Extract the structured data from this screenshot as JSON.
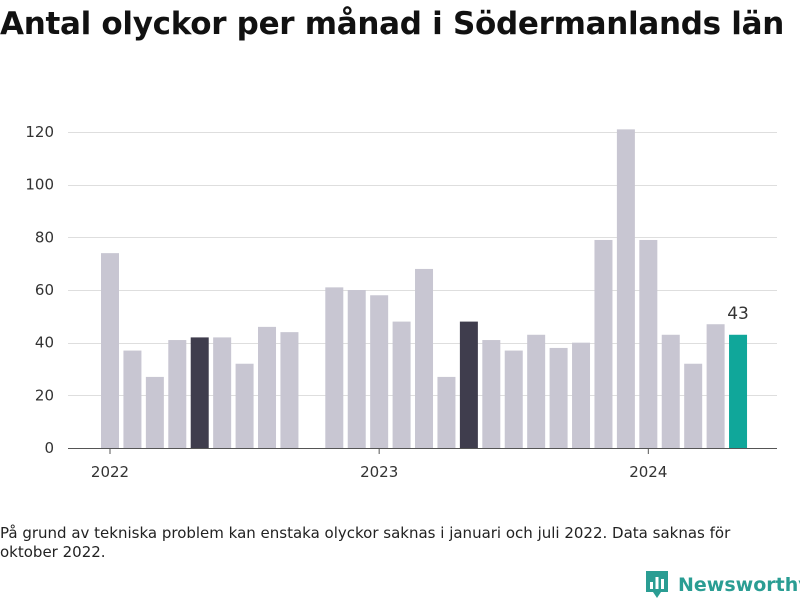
{
  "title": "Antal olyckor per månad i Södermanlands län",
  "footnote": "På grund av tekniska problem kan enstaka olyckor saknas i januari och juli 2022. Data saknas för oktober 2022.",
  "brand": {
    "name": "Newsworthy",
    "logo_icon": "bar-chart-logo-icon"
  },
  "colors": {
    "default": "#c8c6d2",
    "highlight": "#3f3d4d",
    "latest": "#10a79a"
  },
  "chart_data": {
    "type": "bar",
    "title": "Antal olyckor per månad i Södermanlands län",
    "xlabel": "",
    "ylabel": "",
    "ylim": [
      0,
      120
    ],
    "yticks": [
      0,
      20,
      40,
      60,
      80,
      100,
      120
    ],
    "grid": true,
    "legend": "none",
    "x_tick_labels": [
      {
        "label": "2022",
        "month": "2022-01"
      },
      {
        "label": "2023",
        "month": "2023-01"
      },
      {
        "label": "2024",
        "month": "2024-01"
      }
    ],
    "categories": [
      "2022-01",
      "2022-02",
      "2022-03",
      "2022-04",
      "2022-05",
      "2022-06",
      "2022-07",
      "2022-08",
      "2022-09",
      "2022-10",
      "2022-11",
      "2022-12",
      "2023-01",
      "2023-02",
      "2023-03",
      "2023-04",
      "2023-05",
      "2023-06",
      "2023-07",
      "2023-08",
      "2023-09",
      "2023-10",
      "2023-11",
      "2023-12",
      "2024-01",
      "2024-02",
      "2024-03",
      "2024-04",
      "2024-05"
    ],
    "values": [
      74,
      37,
      27,
      41,
      42,
      42,
      32,
      46,
      44,
      null,
      61,
      60,
      58,
      48,
      68,
      27,
      48,
      41,
      37,
      43,
      38,
      40,
      79,
      121,
      79,
      43,
      32,
      47,
      43
    ],
    "highlight": [
      "2022-05",
      "2023-05"
    ],
    "latest": "2024-05",
    "data_labels": [
      {
        "month": "2024-05",
        "text": "43"
      }
    ]
  }
}
